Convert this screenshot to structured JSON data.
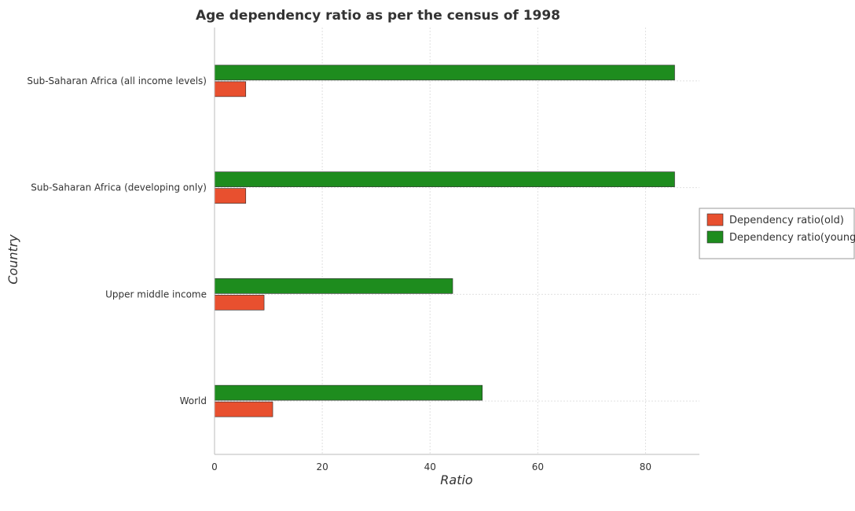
{
  "chart_data": {
    "type": "bar",
    "orientation": "horizontal",
    "title": "Age dependency ratio as per the census of 1998",
    "xlabel": "Ratio",
    "ylabel": "Country",
    "categories": [
      "Sub-Saharan Africa (all income levels)",
      "Sub-Saharan Africa (developing only)",
      "Upper middle income",
      "World"
    ],
    "series": [
      {
        "name": "Dependency ratio(old)",
        "color": "#e8502f",
        "values": [
          5.8,
          5.8,
          9.2,
          10.8
        ]
      },
      {
        "name": "Dependency ratio(young)",
        "color": "#1e8c1e",
        "values": [
          85.4,
          85.4,
          44.2,
          49.7
        ]
      }
    ],
    "xlim": [
      0,
      90
    ],
    "xticks": [
      0,
      20,
      40,
      60,
      80
    ],
    "xtick_labels": [
      "0",
      "20",
      "40",
      "60",
      "80"
    ],
    "grid": true,
    "legend_position": "right"
  }
}
